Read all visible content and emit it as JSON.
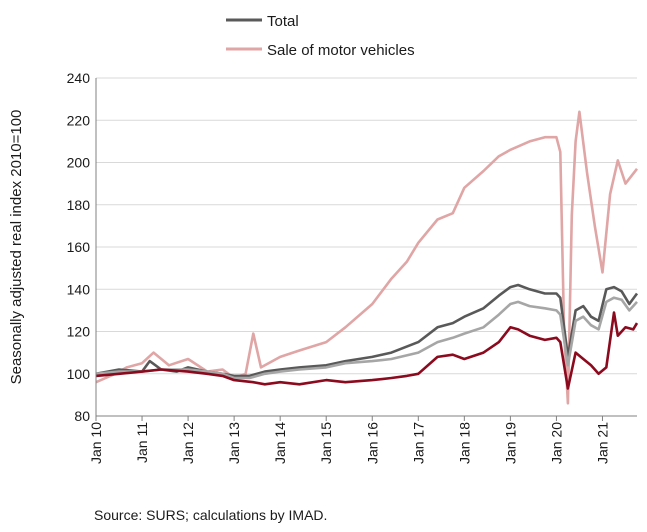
{
  "chart_data": {
    "type": "line",
    "title": "",
    "ylabel": "Seasonally adjusted real index 2010=100",
    "xlabel": "",
    "ylim": [
      80,
      240
    ],
    "yticks": [
      80,
      100,
      120,
      140,
      160,
      180,
      200,
      220,
      240
    ],
    "xlim": [
      "2010-01",
      "2021-10"
    ],
    "xtick_labels": [
      "Jan 10",
      "Jan 11",
      "Jan 12",
      "Jan 13",
      "Jan 14",
      "Jan 15",
      "Jan 16",
      "Jan 17",
      "Jan 18",
      "Jan 19",
      "Jan 20",
      "Jan 21"
    ],
    "grid": "horizontal",
    "legend_position": "top",
    "source": "Source: SURS; calculations by IMAD.",
    "series": [
      {
        "name": "Total",
        "color": "#595959",
        "points": [
          [
            "2010-01",
            100
          ],
          [
            "2010-07",
            102
          ],
          [
            "2011-01",
            101
          ],
          [
            "2011-03",
            106
          ],
          [
            "2011-06",
            102
          ],
          [
            "2011-10",
            101
          ],
          [
            "2012-01",
            103
          ],
          [
            "2012-06",
            101
          ],
          [
            "2012-10",
            100
          ],
          [
            "2013-01",
            99
          ],
          [
            "2013-05",
            99
          ],
          [
            "2013-09",
            101
          ],
          [
            "2014-01",
            102
          ],
          [
            "2014-06",
            103
          ],
          [
            "2015-01",
            104
          ],
          [
            "2015-06",
            106
          ],
          [
            "2016-01",
            108
          ],
          [
            "2016-06",
            110
          ],
          [
            "2017-01",
            115
          ],
          [
            "2017-06",
            122
          ],
          [
            "2017-10",
            124
          ],
          [
            "2018-01",
            127
          ],
          [
            "2018-06",
            131
          ],
          [
            "2018-10",
            137
          ],
          [
            "2019-01",
            141
          ],
          [
            "2019-03",
            142
          ],
          [
            "2019-06",
            140
          ],
          [
            "2019-10",
            138
          ],
          [
            "2020-01",
            138
          ],
          [
            "2020-02",
            136
          ],
          [
            "2020-04",
            108
          ],
          [
            "2020-06",
            130
          ],
          [
            "2020-08",
            132
          ],
          [
            "2020-10",
            127
          ],
          [
            "2020-12",
            125
          ],
          [
            "2021-02",
            140
          ],
          [
            "2021-04",
            141
          ],
          [
            "2021-06",
            139
          ],
          [
            "2021-08",
            133
          ],
          [
            "2021-10",
            138
          ]
        ]
      },
      {
        "name": "Sale of motor vehicles",
        "color": "#e0a5a5",
        "points": [
          [
            "2010-01",
            96
          ],
          [
            "2010-06",
            100
          ],
          [
            "2010-09",
            103
          ],
          [
            "2011-01",
            105
          ],
          [
            "2011-04",
            110
          ],
          [
            "2011-08",
            104
          ],
          [
            "2012-01",
            107
          ],
          [
            "2012-06",
            101
          ],
          [
            "2012-10",
            102
          ],
          [
            "2013-01",
            98
          ],
          [
            "2013-04",
            100
          ],
          [
            "2013-06",
            119
          ],
          [
            "2013-08",
            103
          ],
          [
            "2014-01",
            108
          ],
          [
            "2014-06",
            111
          ],
          [
            "2015-01",
            115
          ],
          [
            "2015-06",
            122
          ],
          [
            "2016-01",
            133
          ],
          [
            "2016-06",
            145
          ],
          [
            "2016-10",
            153
          ],
          [
            "2017-01",
            162
          ],
          [
            "2017-06",
            173
          ],
          [
            "2017-10",
            176
          ],
          [
            "2018-01",
            188
          ],
          [
            "2018-06",
            196
          ],
          [
            "2018-10",
            203
          ],
          [
            "2019-01",
            206
          ],
          [
            "2019-06",
            210
          ],
          [
            "2019-10",
            212
          ],
          [
            "2020-01",
            212
          ],
          [
            "2020-02",
            205
          ],
          [
            "2020-03",
            120
          ],
          [
            "2020-04",
            86
          ],
          [
            "2020-05",
            175
          ],
          [
            "2020-06",
            210
          ],
          [
            "2020-07",
            224
          ],
          [
            "2020-09",
            195
          ],
          [
            "2020-11",
            170
          ],
          [
            "2021-01",
            148
          ],
          [
            "2021-03",
            185
          ],
          [
            "2021-05",
            201
          ],
          [
            "2021-07",
            190
          ],
          [
            "2021-10",
            197
          ]
        ]
      },
      {
        "name": "",
        "color": "#a6a6a6",
        "points": [
          [
            "2010-01",
            100
          ],
          [
            "2010-07",
            101
          ],
          [
            "2011-01",
            101
          ],
          [
            "2011-06",
            102
          ],
          [
            "2012-01",
            102
          ],
          [
            "2012-06",
            101
          ],
          [
            "2012-10",
            100
          ],
          [
            "2013-01",
            98
          ],
          [
            "2013-05",
            98
          ],
          [
            "2013-09",
            100
          ],
          [
            "2014-01",
            101
          ],
          [
            "2014-06",
            102
          ],
          [
            "2015-01",
            103
          ],
          [
            "2015-06",
            105
          ],
          [
            "2016-01",
            106
          ],
          [
            "2016-06",
            107
          ],
          [
            "2017-01",
            110
          ],
          [
            "2017-06",
            115
          ],
          [
            "2017-10",
            117
          ],
          [
            "2018-01",
            119
          ],
          [
            "2018-06",
            122
          ],
          [
            "2018-10",
            128
          ],
          [
            "2019-01",
            133
          ],
          [
            "2019-03",
            134
          ],
          [
            "2019-06",
            132
          ],
          [
            "2019-10",
            131
          ],
          [
            "2020-01",
            130
          ],
          [
            "2020-02",
            128
          ],
          [
            "2020-04",
            104
          ],
          [
            "2020-06",
            125
          ],
          [
            "2020-08",
            127
          ],
          [
            "2020-10",
            123
          ],
          [
            "2020-12",
            121
          ],
          [
            "2021-02",
            134
          ],
          [
            "2021-04",
            136
          ],
          [
            "2021-06",
            135
          ],
          [
            "2021-08",
            130
          ],
          [
            "2021-10",
            134
          ]
        ]
      },
      {
        "name": "",
        "color": "#8b0a1e",
        "points": [
          [
            "2010-01",
            99
          ],
          [
            "2010-07",
            100
          ],
          [
            "2011-01",
            101
          ],
          [
            "2011-06",
            102
          ],
          [
            "2012-01",
            101
          ],
          [
            "2012-06",
            100
          ],
          [
            "2012-10",
            99
          ],
          [
            "2013-01",
            97
          ],
          [
            "2013-06",
            96
          ],
          [
            "2013-09",
            95
          ],
          [
            "2014-01",
            96
          ],
          [
            "2014-06",
            95
          ],
          [
            "2015-01",
            97
          ],
          [
            "2015-06",
            96
          ],
          [
            "2016-01",
            97
          ],
          [
            "2016-06",
            98
          ],
          [
            "2016-10",
            99
          ],
          [
            "2017-01",
            100
          ],
          [
            "2017-06",
            108
          ],
          [
            "2017-10",
            109
          ],
          [
            "2018-01",
            107
          ],
          [
            "2018-06",
            110
          ],
          [
            "2018-10",
            115
          ],
          [
            "2019-01",
            122
          ],
          [
            "2019-03",
            121
          ],
          [
            "2019-06",
            118
          ],
          [
            "2019-10",
            116
          ],
          [
            "2020-01",
            117
          ],
          [
            "2020-02",
            115
          ],
          [
            "2020-04",
            93
          ],
          [
            "2020-06",
            110
          ],
          [
            "2020-08",
            107
          ],
          [
            "2020-10",
            104
          ],
          [
            "2020-12",
            100
          ],
          [
            "2021-02",
            103
          ],
          [
            "2021-04",
            129
          ],
          [
            "2021-05",
            118
          ],
          [
            "2021-07",
            122
          ],
          [
            "2021-09",
            121
          ],
          [
            "2021-10",
            124
          ]
        ]
      }
    ]
  }
}
